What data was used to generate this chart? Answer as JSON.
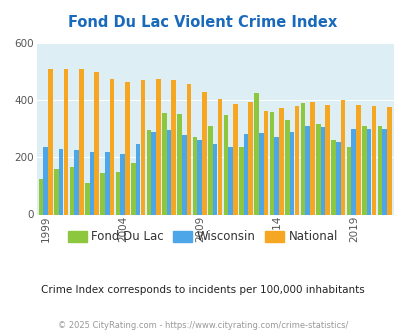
{
  "title": "Fond Du Lac Violent Crime Index",
  "years": [
    1999,
    2000,
    2001,
    2002,
    2003,
    2004,
    2005,
    2006,
    2007,
    2008,
    2009,
    2010,
    2011,
    2012,
    2013,
    2014,
    2015,
    2016,
    2017,
    2018,
    2019,
    2020,
    2021
  ],
  "fond_du_lac": [
    125,
    160,
    165,
    110,
    145,
    148,
    180,
    295,
    355,
    350,
    270,
    310,
    348,
    235,
    425,
    360,
    330,
    390,
    315,
    260,
    237,
    310,
    310
  ],
  "wisconsin": [
    235,
    230,
    225,
    220,
    218,
    210,
    245,
    290,
    295,
    278,
    262,
    248,
    235,
    280,
    285,
    270,
    290,
    310,
    305,
    255,
    300,
    300,
    298
  ],
  "national": [
    507,
    507,
    507,
    499,
    475,
    463,
    470,
    475,
    470,
    458,
    428,
    405,
    387,
    395,
    363,
    372,
    380,
    395,
    382,
    399,
    384,
    380,
    377
  ],
  "colors": {
    "fond_du_lac": "#8dc63f",
    "wisconsin": "#4da6e8",
    "national": "#f5a623"
  },
  "ylim": [
    0,
    600
  ],
  "yticks": [
    0,
    200,
    400,
    600
  ],
  "xtick_years": [
    1999,
    2004,
    2009,
    2014,
    2019
  ],
  "background_color": "#ddeef5",
  "legend_labels": [
    "Fond Du Lac",
    "Wisconsin",
    "National"
  ],
  "subtitle": "Crime Index corresponds to incidents per 100,000 inhabitants",
  "footer": "© 2025 CityRating.com - https://www.cityrating.com/crime-statistics/",
  "title_color": "#1a6abb",
  "subtitle_color": "#222222",
  "footer_color": "#999999"
}
